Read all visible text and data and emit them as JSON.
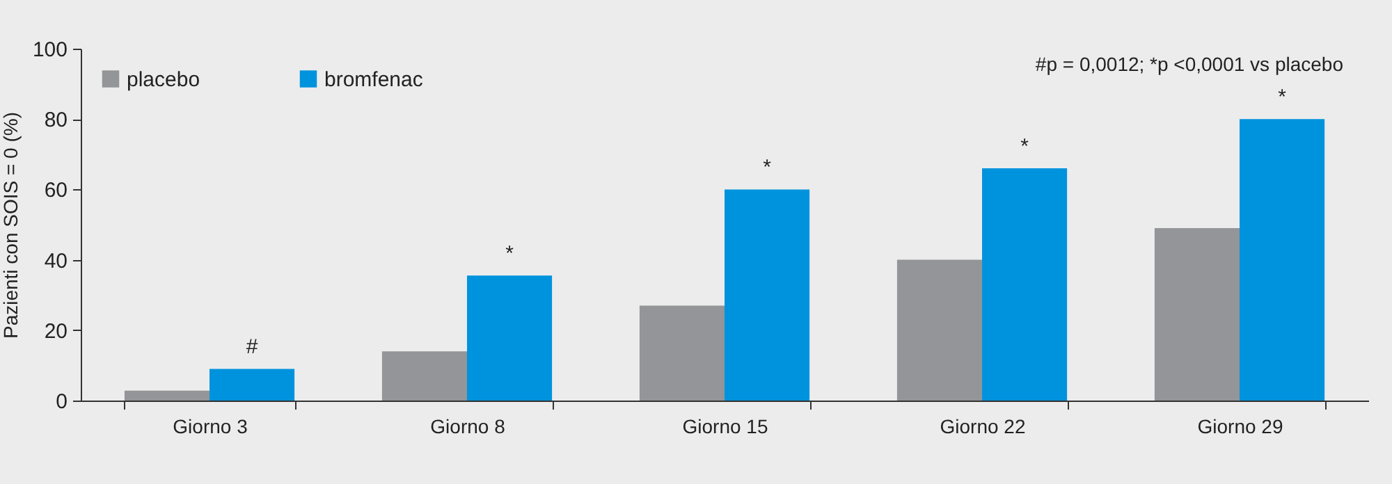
{
  "chart_data": {
    "type": "bar",
    "ylabel": "Pazienti con SOIS = 0 (%)",
    "categories": [
      "Giorno 3",
      "Giorno 8",
      "Giorno 15",
      "Giorno 22",
      "Giorno 29"
    ],
    "series": [
      {
        "name": "placebo",
        "color": "#939598",
        "values": [
          2.8,
          14,
          27,
          40,
          49
        ]
      },
      {
        "name": "bromfenac",
        "color": "#0093dd",
        "values": [
          9,
          35.5,
          60,
          66,
          80
        ]
      }
    ],
    "ylim": [
      0,
      100
    ],
    "yticks": [
      0,
      20,
      40,
      60,
      80,
      100
    ],
    "grid": false,
    "legend": "top left",
    "annotations": [
      "#p = 0,0012;      *p <0,0001 vs placebo",
      {
        "text": "#",
        "x": "Giorno 3",
        "y": 9
      },
      {
        "text": "*",
        "x": "Giorno 8",
        "y": 35.5
      },
      {
        "text": "*",
        "x": "Giorno 15",
        "y": 60
      },
      {
        "text": "*",
        "x": "Giorno 22",
        "y": 66
      },
      {
        "text": "*",
        "x": "Giorno 29",
        "y": 80
      }
    ]
  }
}
